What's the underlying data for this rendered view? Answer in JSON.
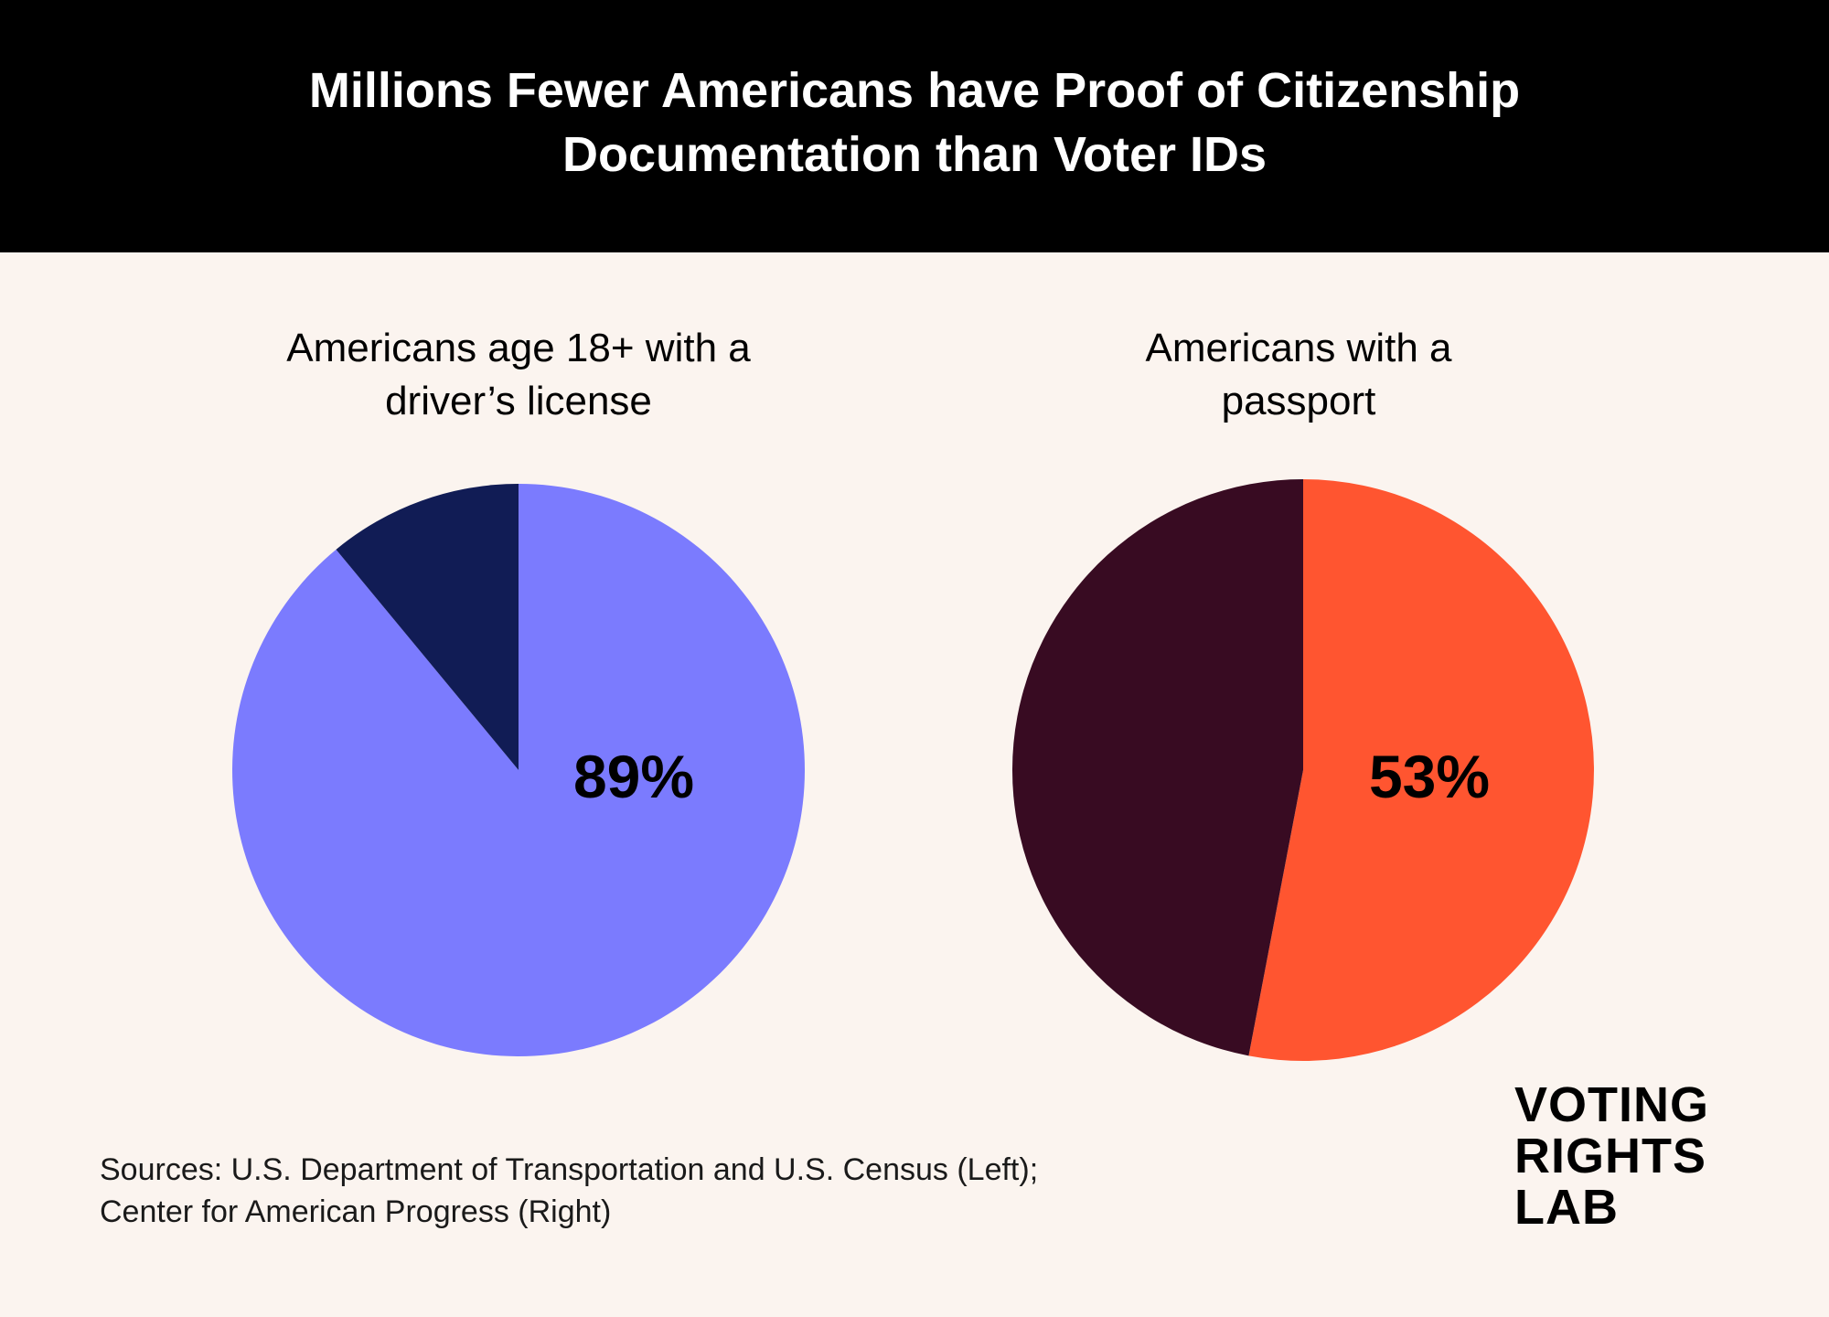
{
  "header": {
    "title_line1": "Millions Fewer Americans have Proof of Citizenship",
    "title_line2": "Documentation than Voter IDs"
  },
  "colors": {
    "background": "#FBF4EF",
    "header_background": "#000000",
    "license_yes": "#7B7BFE",
    "license_no": "#111C55",
    "passport_yes": "#FF5530",
    "passport_no": "#380B22"
  },
  "chart_data": [
    {
      "type": "pie",
      "title_lines": [
        "Americans age 18+ with a",
        "driver’s license"
      ],
      "slices": [
        {
          "value": 89,
          "color": "#7B7BFE",
          "label": "89%"
        },
        {
          "value": 11,
          "color": "#111C55",
          "label": ""
        }
      ]
    },
    {
      "type": "pie",
      "title_lines": [
        "Americans with a",
        "passport"
      ],
      "slices": [
        {
          "value": 53,
          "color": "#FF5530",
          "label": "53%"
        },
        {
          "value": 47,
          "color": "#380B22",
          "label": ""
        }
      ]
    }
  ],
  "footer": {
    "sources_line1": "Sources: U.S. Department of Transportation and U.S. Census (Left);",
    "sources_line2": "Center for American Progress (Right)"
  },
  "logo": {
    "line1": "VOTING",
    "line2": "RIGHTS",
    "line3": "LAB"
  }
}
